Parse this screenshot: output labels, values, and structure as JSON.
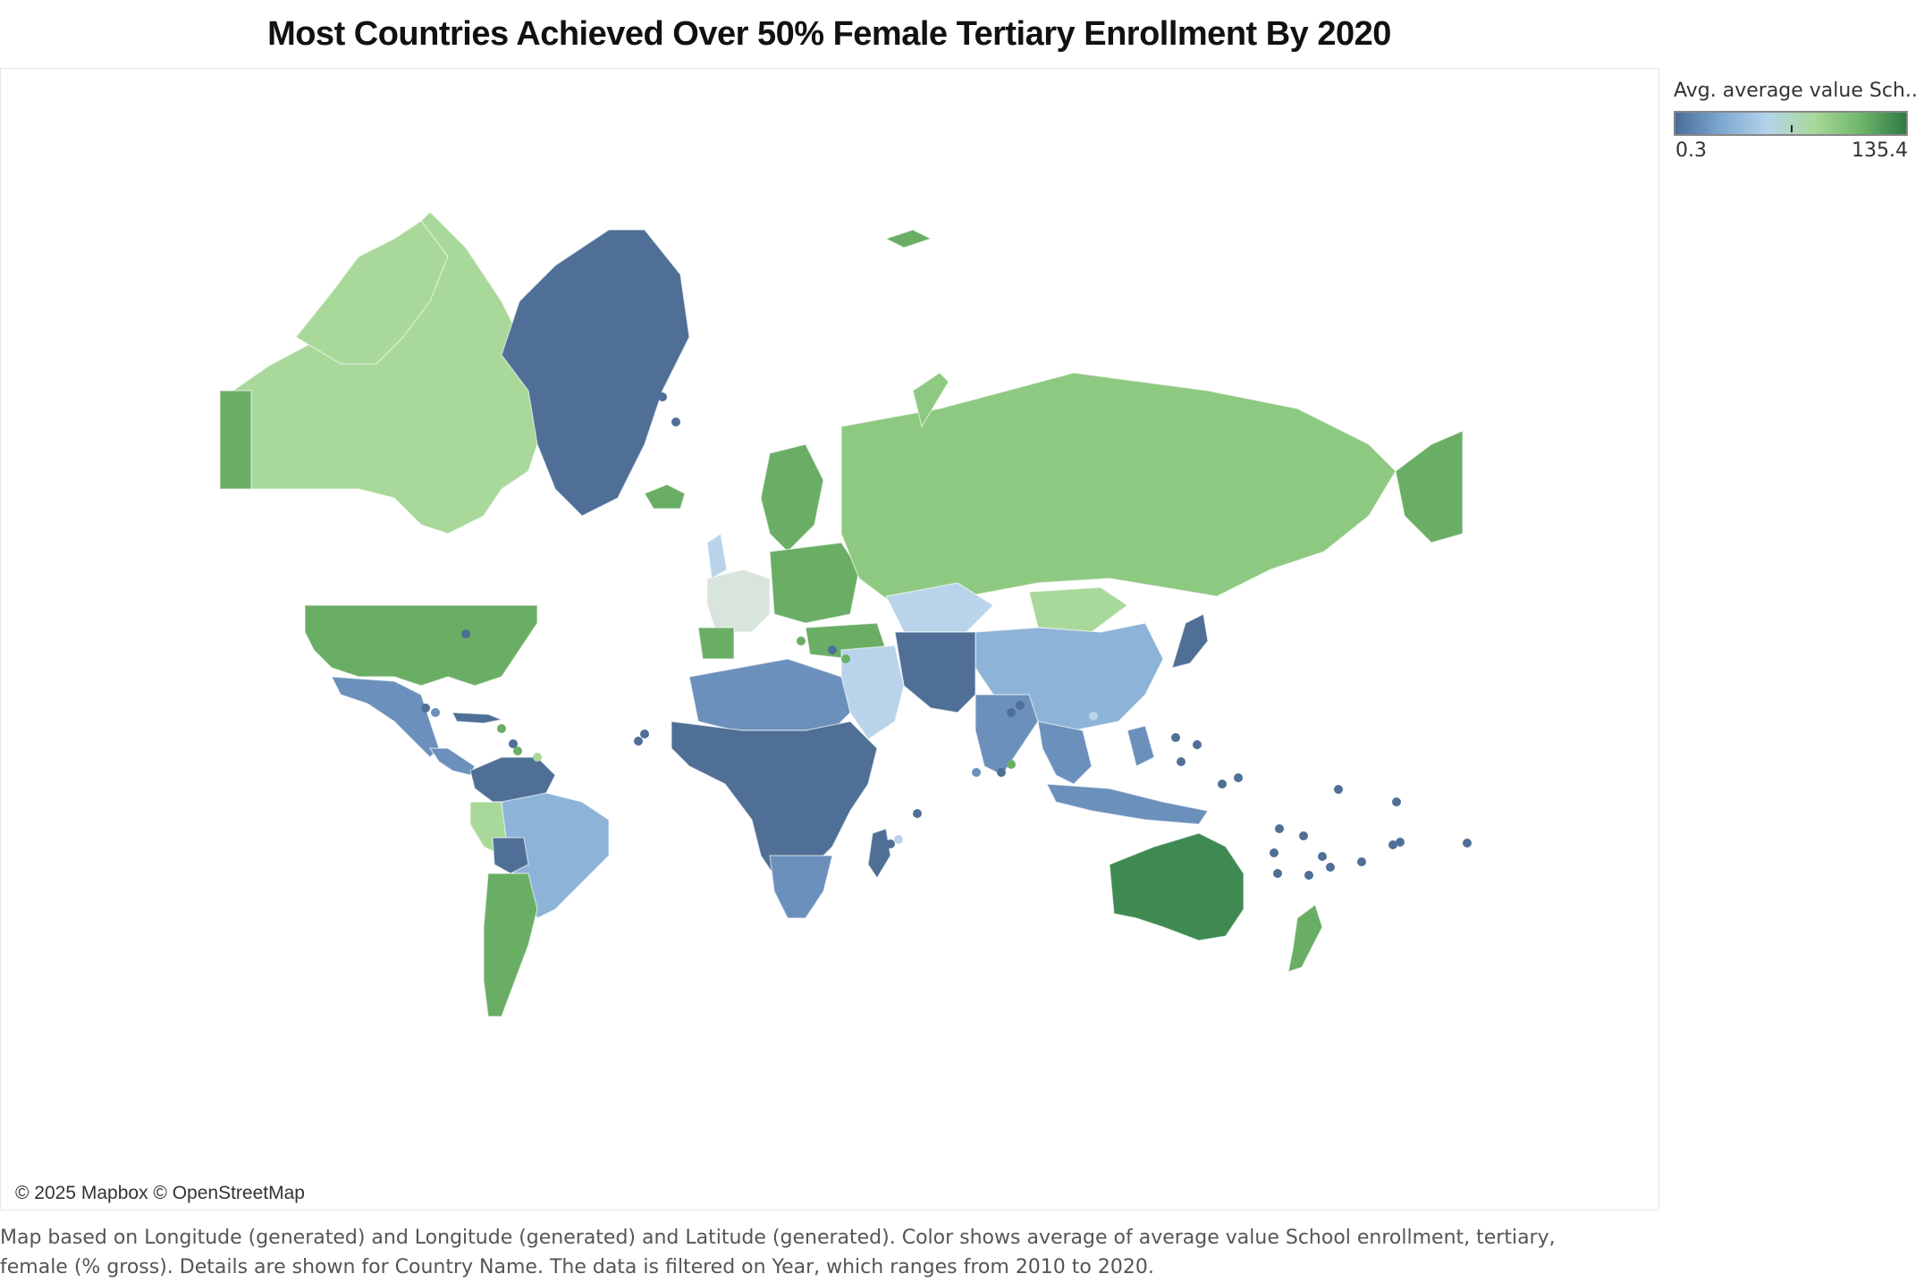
{
  "title": "Most Countries Achieved Over 50% Female Tertiary Enrollment By 2020",
  "legend": {
    "title": "Avg. average value Sch..",
    "min_label": "0.3",
    "max_label": "135.4",
    "min_value": 0.3,
    "max_value": 135.4,
    "midpoint_value": 67.85,
    "colors": [
      "#4a6d9a",
      "#7ea8d2",
      "#b4d3ea",
      "#a9d99a",
      "#6fb66a",
      "#2e7a45"
    ]
  },
  "attribution": "© 2025 Mapbox © OpenStreetMap",
  "caption": {
    "line1": "Map based on Longitude (generated) and Longitude (generated) and Latitude (generated).  Color shows average of average value School enrollment, tertiary,",
    "line2": "female (% gross).  Details are shown for Country Name. The data is filtered on Year, which ranges from 2010 to 2020."
  },
  "map": {
    "colors": {
      "low": "#4f6f96",
      "low_mid": "#6b90bb",
      "mid_blue": "#8db3d8",
      "light_blue": "#b9d4ea",
      "neutral": "#d8e4dc",
      "light_green": "#a9d99a",
      "mid_green": "#8ec981",
      "green": "#6aae65",
      "dark_green": "#3f8a52"
    }
  }
}
